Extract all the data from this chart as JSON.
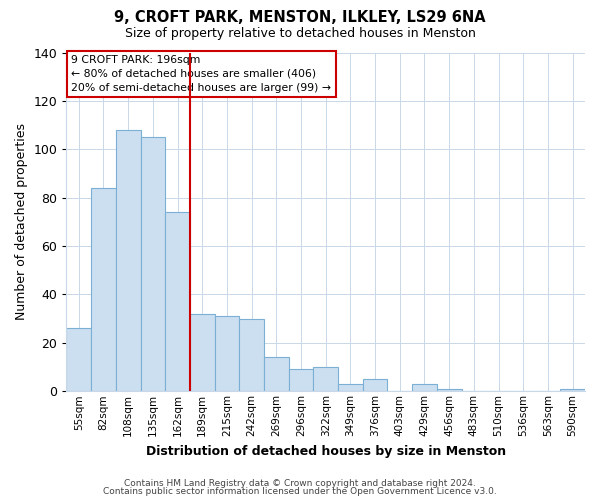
{
  "title": "9, CROFT PARK, MENSTON, ILKLEY, LS29 6NA",
  "subtitle": "Size of property relative to detached houses in Menston",
  "xlabel": "Distribution of detached houses by size in Menston",
  "ylabel": "Number of detached properties",
  "bar_color": "#ccdff0",
  "bar_edgecolor": "#7bafd4",
  "categories": [
    "55sqm",
    "82sqm",
    "108sqm",
    "135sqm",
    "162sqm",
    "189sqm",
    "215sqm",
    "242sqm",
    "269sqm",
    "296sqm",
    "322sqm",
    "349sqm",
    "376sqm",
    "403sqm",
    "429sqm",
    "456sqm",
    "483sqm",
    "510sqm",
    "536sqm",
    "563sqm",
    "590sqm"
  ],
  "values": [
    26,
    84,
    108,
    105,
    74,
    32,
    31,
    30,
    14,
    9,
    10,
    3,
    5,
    0,
    3,
    1,
    0,
    0,
    0,
    0,
    1
  ],
  "ylim": [
    0,
    140
  ],
  "yticks": [
    0,
    20,
    40,
    60,
    80,
    100,
    120,
    140
  ],
  "vline_index": 5,
  "vline_color": "#cc0000",
  "annotation_title": "9 CROFT PARK: 196sqm",
  "annotation_line1": "← 80% of detached houses are smaller (406)",
  "annotation_line2": "20% of semi-detached houses are larger (99) →",
  "footer1": "Contains HM Land Registry data © Crown copyright and database right 2024.",
  "footer2": "Contains public sector information licensed under the Open Government Licence v3.0.",
  "background_color": "#ffffff",
  "grid_color": "#c8d8e8"
}
